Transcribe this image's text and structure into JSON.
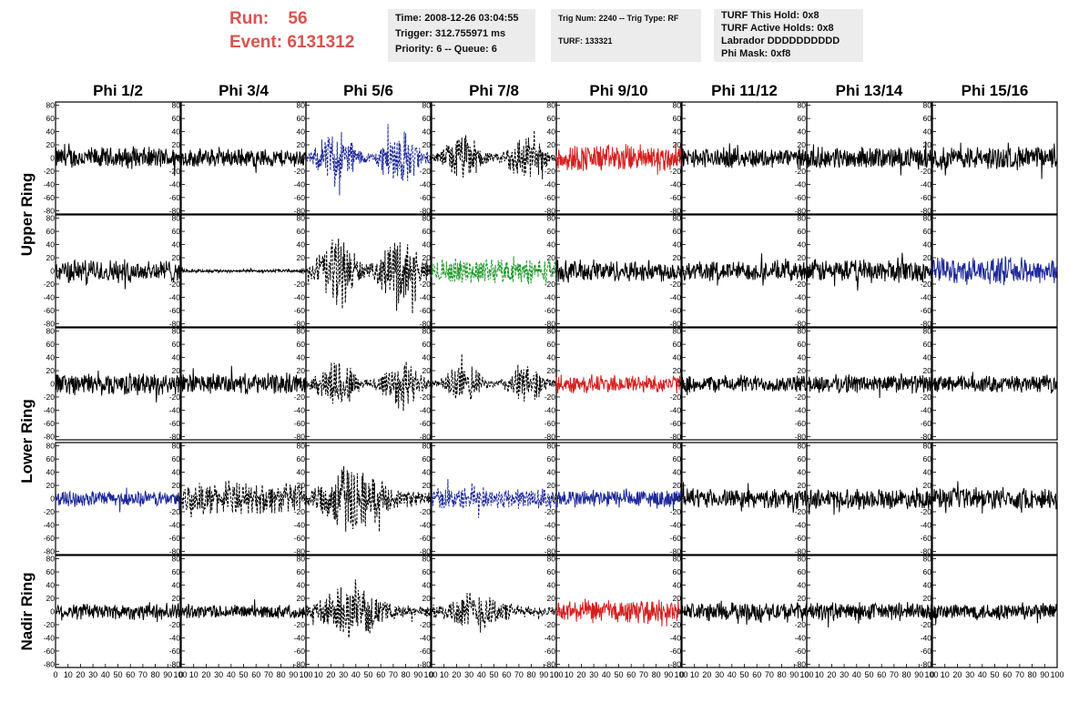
{
  "header": {
    "run_label": "Run:",
    "run_value": "56",
    "event_label": "Event:",
    "event_value": "6131312",
    "time_box": [
      "Time: 2008-12-26 03:04:55",
      "Trigger: 312.755971 ms",
      "Priority: 6 -- Queue: 6"
    ],
    "trig_box": [
      "Trig Num: 2240 -- Trig Type: RF",
      "",
      "TURF: 133321"
    ],
    "turf_box": [
      "TURF This Hold: 0x8",
      "TURF Active Holds: 0x8",
      "Labrador DDDDDDDDDD",
      "Phi Mask: 0xf8"
    ]
  },
  "colors": {
    "black": "#000000",
    "red": "#d42020",
    "blue": "#1f2a9a",
    "green": "#1f9a2a",
    "header_red": "#d9534f"
  },
  "chart_data": {
    "type": "line",
    "columns": [
      "Phi 1/2",
      "Phi 3/4",
      "Phi 5/6",
      "Phi 7/8",
      "Phi 9/10",
      "Phi 11/12",
      "Phi 13/14",
      "Phi 15/16"
    ],
    "ring_labels": [
      "Upper Ring",
      "Lower Ring",
      "Nadir Ring"
    ],
    "ylim": [
      -85,
      85
    ],
    "yticks": [
      -80,
      -60,
      -40,
      -20,
      0,
      20,
      40,
      60,
      80
    ],
    "xlim": [
      0,
      100
    ],
    "xticks": [
      0,
      10,
      20,
      30,
      40,
      50,
      60,
      70,
      80,
      90,
      100
    ],
    "panels": [
      [
        {
          "color": "black",
          "style": "solid",
          "amp": 14
        },
        {
          "color": "black",
          "style": "solid",
          "amp": 12
        },
        {
          "color": "blue",
          "style": "dashed",
          "amp": 26,
          "envelope": "double"
        },
        {
          "color": "black",
          "style": "dashed",
          "amp": 22,
          "envelope": "double"
        },
        {
          "color": "red",
          "style": "solid",
          "amp": 18
        },
        {
          "color": "black",
          "style": "solid",
          "amp": 13
        },
        {
          "color": "black",
          "style": "solid",
          "amp": 14
        },
        {
          "color": "black",
          "style": "solid",
          "amp": 15
        }
      ],
      [
        {
          "color": "black",
          "style": "solid",
          "amp": 15
        },
        {
          "color": "black",
          "style": "solid",
          "amp": 2
        },
        {
          "color": "black",
          "style": "dashed",
          "amp": 34,
          "envelope": "double"
        },
        {
          "color": "green",
          "style": "dashed",
          "amp": 16
        },
        {
          "color": "black",
          "style": "solid",
          "amp": 14
        },
        {
          "color": "black",
          "style": "solid",
          "amp": 13
        },
        {
          "color": "black",
          "style": "solid",
          "amp": 15
        },
        {
          "color": "blue",
          "style": "solid",
          "amp": 17
        }
      ],
      [
        {
          "color": "black",
          "style": "solid",
          "amp": 14
        },
        {
          "color": "black",
          "style": "solid",
          "amp": 13
        },
        {
          "color": "black",
          "style": "dashed",
          "amp": 24,
          "envelope": "double"
        },
        {
          "color": "black",
          "style": "dashed",
          "amp": 18,
          "envelope": "double"
        },
        {
          "color": "red",
          "style": "solid",
          "amp": 12
        },
        {
          "color": "black",
          "style": "solid",
          "amp": 11
        },
        {
          "color": "black",
          "style": "solid",
          "amp": 12
        },
        {
          "color": "black",
          "style": "solid",
          "amp": 11
        }
      ],
      [
        {
          "color": "blue",
          "style": "solid",
          "amp": 10
        },
        {
          "color": "black",
          "style": "dashed",
          "amp": 20
        },
        {
          "color": "black",
          "style": "dashed",
          "amp": 30,
          "envelope": "single"
        },
        {
          "color": "blue",
          "style": "dashed",
          "amp": 14
        },
        {
          "color": "blue",
          "style": "solid",
          "amp": 12
        },
        {
          "color": "black",
          "style": "solid",
          "amp": 12
        },
        {
          "color": "black",
          "style": "solid",
          "amp": 13
        },
        {
          "color": "black",
          "style": "solid",
          "amp": 14
        }
      ],
      [
        {
          "color": "black",
          "style": "solid",
          "amp": 11
        },
        {
          "color": "black",
          "style": "solid",
          "amp": 9
        },
        {
          "color": "black",
          "style": "dashed",
          "amp": 22,
          "envelope": "single"
        },
        {
          "color": "black",
          "style": "dashed",
          "amp": 18,
          "envelope": "single"
        },
        {
          "color": "red",
          "style": "solid",
          "amp": 15
        },
        {
          "color": "black",
          "style": "solid",
          "amp": 12
        },
        {
          "color": "black",
          "style": "solid",
          "amp": 12
        },
        {
          "color": "black",
          "style": "solid",
          "amp": 11
        }
      ]
    ]
  }
}
